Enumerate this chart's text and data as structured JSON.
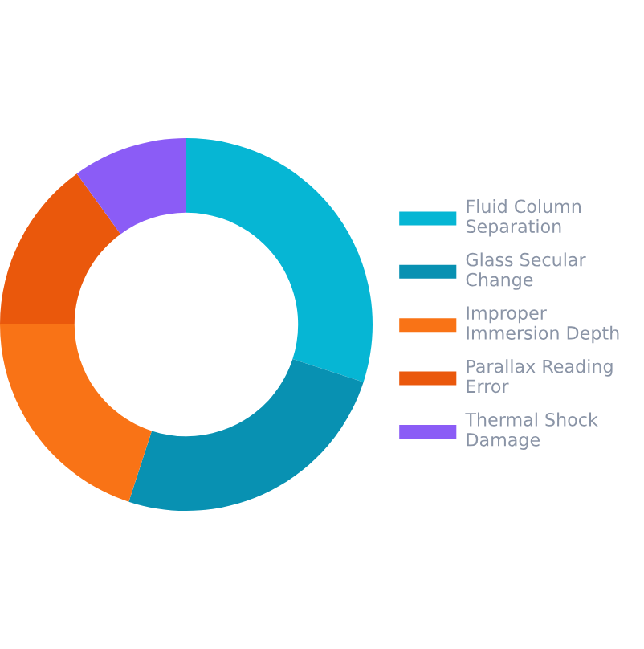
{
  "chart_data": {
    "type": "donut",
    "categories": [
      "Fluid Column Separation",
      "Glass Secular Change",
      "Improper Immersion Depth",
      "Parallax Reading Error",
      "Thermal Shock Damage"
    ],
    "values": [
      30,
      25,
      20,
      15,
      10
    ],
    "colors": [
      "#06b6d4",
      "#0891b2",
      "#f97316",
      "#ea580c",
      "#8b5cf6"
    ],
    "legend": "right"
  }
}
